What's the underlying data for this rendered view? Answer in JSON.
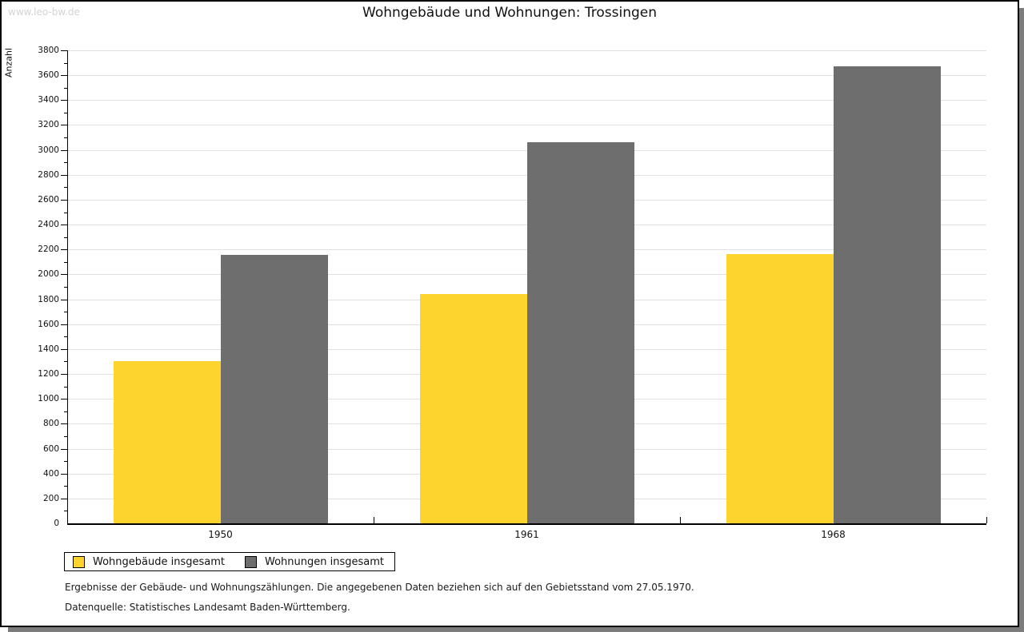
{
  "watermark": "www.leo-bw.de",
  "title": "Wohngebäude und Wohnungen: Trossingen",
  "chart_data": {
    "type": "bar",
    "title": "Wohngebäude und Wohnungen: Trossingen",
    "categories": [
      "1950",
      "1961",
      "1968"
    ],
    "series": [
      {
        "name": "Wohngebäude insgesamt",
        "color": "#FCD42D",
        "values": [
          1300,
          1845,
          2165
        ]
      },
      {
        "name": "Wohnungen insgesamt",
        "color": "#6E6E6E",
        "values": [
          2155,
          3065,
          3670
        ]
      }
    ],
    "xlabel": "",
    "ylabel": "Anzahl",
    "ylim": [
      0,
      3800
    ],
    "ytick_major_step": 200,
    "ytick_minor_step": 100,
    "grid": true,
    "legend_position": "bottom-left",
    "gridline_color": "#e0e0e0"
  },
  "footnotes": [
    "Ergebnisse der Gebäude- und Wohnungszählungen. Die angegebenen Daten beziehen sich auf den Gebietsstand vom 27.05.1970.",
    "Datenquelle: Statistisches Landesamt Baden-Württemberg."
  ]
}
